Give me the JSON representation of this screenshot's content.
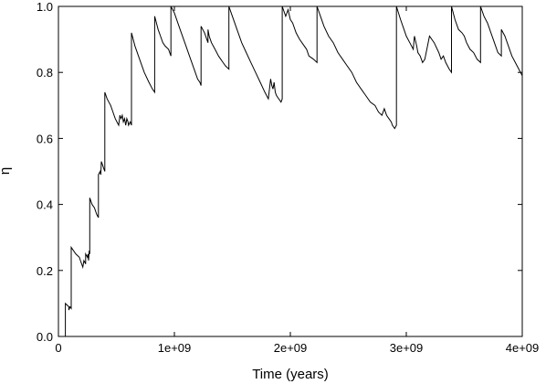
{
  "chart_data": {
    "type": "line",
    "title": "",
    "xlabel": "Time (years)",
    "ylabel": "η",
    "xlim": [
      0,
      4000000000
    ],
    "ylim": [
      0,
      1.0
    ],
    "grid": false,
    "legend": "none",
    "line_color": "#000000",
    "x_ticks": [
      0,
      1000000000,
      2000000000,
      3000000000,
      4000000000
    ],
    "x_tick_labels": [
      "0",
      "1e+09",
      "2e+09",
      "3e+09",
      "4e+09"
    ],
    "y_ticks": [
      0,
      0.2,
      0.4,
      0.6,
      0.8,
      1.0
    ],
    "y_tick_labels": [
      "0.0",
      "0.2",
      "0.4",
      "0.6",
      "0.8",
      "1.0"
    ],
    "series": [
      {
        "x": [
          0,
          60000000,
          60000000,
          90000000,
          90000000,
          100000000,
          110000000,
          110000000,
          150000000,
          180000000,
          190000000,
          200000000,
          210000000,
          220000000,
          235000000,
          235000000,
          250000000,
          255000000,
          260000000,
          265000000,
          270000000,
          270000000,
          290000000,
          310000000,
          330000000,
          345000000,
          345000000,
          360000000,
          365000000,
          370000000,
          380000000,
          390000000,
          400000000,
          400000000,
          420000000,
          450000000,
          470000000,
          490000000,
          520000000,
          530000000,
          540000000,
          550000000,
          560000000,
          570000000,
          580000000,
          590000000,
          600000000,
          605000000,
          620000000,
          630000000,
          630000000,
          660000000,
          700000000,
          740000000,
          780000000,
          810000000,
          830000000,
          830000000,
          860000000,
          880000000,
          900000000,
          920000000,
          950000000,
          970000000,
          970000000,
          1000000000,
          1020000000,
          1050000000,
          1090000000,
          1130000000,
          1170000000,
          1200000000,
          1220000000,
          1230000000,
          1230000000,
          1260000000,
          1290000000,
          1290000000,
          1300000000,
          1320000000,
          1350000000,
          1380000000,
          1400000000,
          1420000000,
          1440000000,
          1470000000,
          1470000000,
          1500000000,
          1540000000,
          1580000000,
          1620000000,
          1660000000,
          1700000000,
          1740000000,
          1780000000,
          1810000000,
          1830000000,
          1840000000,
          1850000000,
          1860000000,
          1870000000,
          1880000000,
          1900000000,
          1920000000,
          1930000000,
          1930000000,
          1960000000,
          1980000000,
          2000000000,
          2020000000,
          2050000000,
          2080000000,
          2100000000,
          2140000000,
          2160000000,
          2200000000,
          2230000000,
          2230000000,
          2260000000,
          2290000000,
          2330000000,
          2370000000,
          2410000000,
          2450000000,
          2490000000,
          2530000000,
          2570000000,
          2610000000,
          2650000000,
          2690000000,
          2730000000,
          2760000000,
          2790000000,
          2810000000,
          2830000000,
          2850000000,
          2870000000,
          2880000000,
          2900000000,
          2915000000,
          2915000000,
          2950000000,
          2980000000,
          3000000000,
          3030000000,
          3060000000,
          3070000000,
          3090000000,
          3100000000,
          3120000000,
          3140000000,
          3160000000,
          3200000000,
          3240000000,
          3280000000,
          3300000000,
          3320000000,
          3340000000,
          3370000000,
          3390000000,
          3390000000,
          3420000000,
          3450000000,
          3480000000,
          3500000000,
          3520000000,
          3550000000,
          3580000000,
          3610000000,
          3640000000,
          3640000000,
          3670000000,
          3700000000,
          3730000000,
          3760000000,
          3790000000,
          3820000000,
          3820000000,
          3850000000,
          3880000000,
          3910000000,
          3940000000,
          3970000000,
          4000000000
        ],
        "y": [
          0.0,
          0.0,
          0.1,
          0.09,
          0.08,
          0.09,
          0.085,
          0.27,
          0.25,
          0.24,
          0.23,
          0.22,
          0.21,
          0.23,
          0.22,
          0.25,
          0.24,
          0.25,
          0.23,
          0.26,
          0.25,
          0.42,
          0.4,
          0.39,
          0.37,
          0.36,
          0.49,
          0.5,
          0.49,
          0.53,
          0.52,
          0.51,
          0.5,
          0.74,
          0.72,
          0.7,
          0.68,
          0.66,
          0.64,
          0.67,
          0.66,
          0.67,
          0.65,
          0.66,
          0.64,
          0.66,
          0.65,
          0.64,
          0.65,
          0.64,
          0.92,
          0.88,
          0.84,
          0.8,
          0.77,
          0.75,
          0.74,
          0.97,
          0.93,
          0.91,
          0.89,
          0.88,
          0.87,
          0.85,
          1.0,
          0.98,
          0.96,
          0.93,
          0.89,
          0.85,
          0.81,
          0.78,
          0.77,
          0.76,
          0.94,
          0.92,
          0.89,
          0.93,
          0.91,
          0.89,
          0.87,
          0.85,
          0.84,
          0.83,
          0.82,
          0.81,
          1.0,
          0.97,
          0.93,
          0.89,
          0.86,
          0.83,
          0.8,
          0.77,
          0.74,
          0.72,
          0.78,
          0.76,
          0.75,
          0.77,
          0.74,
          0.73,
          0.72,
          0.71,
          0.72,
          1.0,
          0.97,
          0.99,
          0.96,
          0.95,
          0.92,
          0.9,
          0.89,
          0.87,
          0.85,
          0.84,
          0.83,
          1.0,
          0.97,
          0.94,
          0.91,
          0.89,
          0.86,
          0.84,
          0.82,
          0.8,
          0.77,
          0.75,
          0.73,
          0.71,
          0.7,
          0.68,
          0.67,
          0.69,
          0.67,
          0.66,
          0.65,
          0.64,
          0.63,
          0.64,
          1.0,
          0.96,
          0.93,
          0.91,
          0.89,
          0.87,
          0.91,
          0.88,
          0.86,
          0.85,
          0.83,
          0.84,
          0.91,
          0.89,
          0.86,
          0.84,
          0.85,
          0.83,
          0.81,
          0.8,
          1.0,
          0.96,
          0.93,
          0.92,
          0.91,
          0.89,
          0.87,
          0.86,
          0.84,
          0.83,
          1.0,
          0.97,
          0.95,
          0.92,
          0.89,
          0.86,
          0.85,
          0.93,
          0.91,
          0.88,
          0.85,
          0.83,
          0.81,
          0.79
        ]
      }
    ]
  }
}
